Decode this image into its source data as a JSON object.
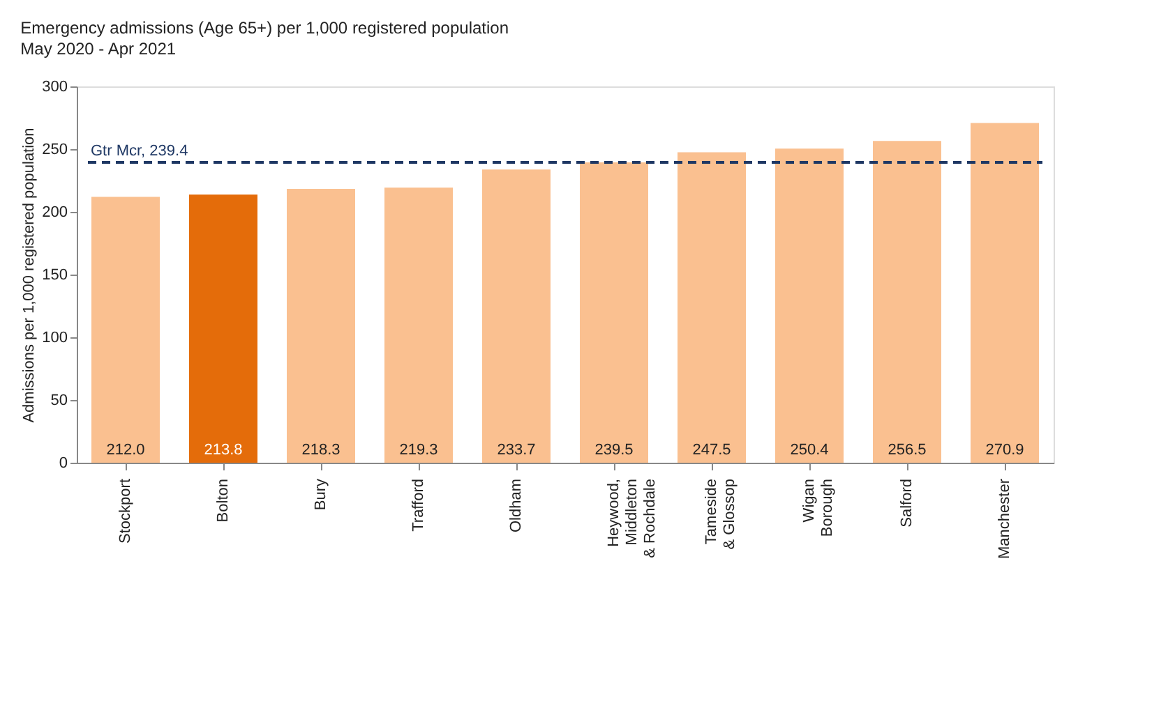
{
  "chart_data": {
    "type": "bar",
    "title": "Emergency admissions (Age 65+) per 1,000 registered population",
    "subtitle": "May 2020 - Apr 2021",
    "ylabel": "Admissions per 1,000 registered population",
    "categories": [
      "Stockport",
      "Bolton",
      "Bury",
      "Trafford",
      "Oldham",
      "Heywood,\nMiddleton\n& Rochdale",
      "Tameside\n& Glossop",
      "Wigan\nBorough",
      "Salford",
      "Manchester"
    ],
    "values": [
      212.0,
      213.8,
      218.3,
      219.3,
      233.7,
      239.5,
      247.5,
      250.4,
      256.5,
      270.9
    ],
    "colors": [
      "#fac090",
      "#e46c0a",
      "#fac090",
      "#fac090",
      "#fac090",
      "#fac090",
      "#fac090",
      "#fac090",
      "#fac090",
      "#fac090"
    ],
    "ylim": [
      0,
      300
    ],
    "yticks": [
      0,
      50,
      100,
      150,
      200,
      250,
      300
    ],
    "grid": false,
    "value_labels": [
      "212.0",
      "213.8",
      "218.3",
      "219.3",
      "233.7",
      "239.5",
      "247.5",
      "250.4",
      "256.5",
      "270.9"
    ],
    "ref_lines": [
      {
        "axis": "y",
        "value": 239.4,
        "label": "Gtr Mcr, 239.4",
        "color": "#1f3864",
        "line_style": "dashed"
      }
    ]
  }
}
